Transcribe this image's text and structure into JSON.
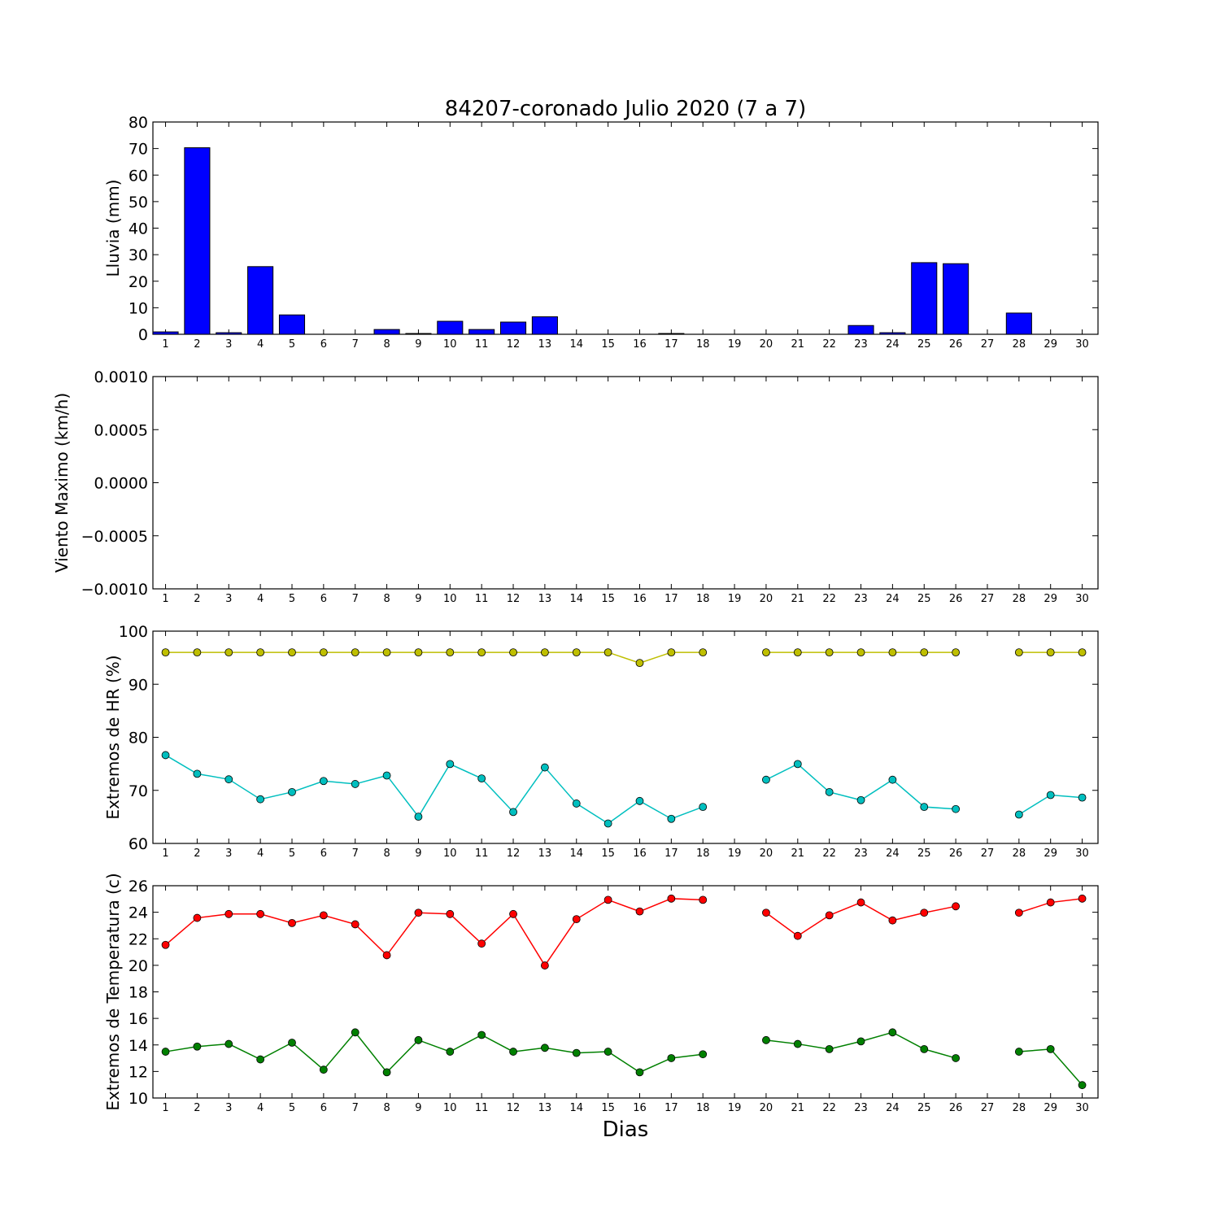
{
  "title": "84207-coronado Julio 2020  (7 a 7)",
  "xlabel": "Dias",
  "colors": {
    "rain": "#0000ff",
    "hr_max": "#bfbf00",
    "hr_min": "#00bfbf",
    "temp_max": "#ff0000",
    "temp_min": "#008000"
  },
  "chart_data": [
    {
      "type": "bar",
      "ylabel": "Lluvia (mm)",
      "ylim": [
        0,
        80
      ],
      "yticks": [
        "0",
        "10",
        "20",
        "30",
        "40",
        "50",
        "60",
        "70",
        "80"
      ],
      "xlim": [
        0.6,
        30.5
      ],
      "categories": [
        1,
        2,
        3,
        4,
        5,
        6,
        7,
        8,
        9,
        10,
        11,
        12,
        13,
        14,
        15,
        16,
        17,
        18,
        19,
        20,
        21,
        22,
        23,
        24,
        25,
        26,
        27,
        28,
        29,
        30
      ],
      "xticks": [
        "1",
        "2",
        "3",
        "4",
        "5",
        "6",
        "7",
        "8",
        "9",
        "10",
        "11",
        "12",
        "13",
        "14",
        "15",
        "16",
        "17",
        "18",
        "19",
        "20",
        "21",
        "22",
        "23",
        "24",
        "25",
        "26",
        "27",
        "28",
        "29",
        "30"
      ],
      "series": [
        {
          "values": [
            0.9,
            70.3,
            0.6,
            25.5,
            7.3,
            0,
            0,
            1.8,
            0.3,
            4.9,
            1.8,
            4.6,
            6.6,
            0,
            0,
            0,
            0.3,
            0,
            0,
            0,
            0,
            0,
            3.3,
            0.6,
            27.0,
            26.6,
            0,
            8.0,
            0,
            0
          ]
        }
      ]
    },
    {
      "type": "line",
      "ylabel": "Viento Maximo (km/h)",
      "ylim": [
        -0.001,
        0.001
      ],
      "yticks": [
        "−0.0010",
        "−0.0005",
        "0.0000",
        "0.0005",
        "0.0010"
      ],
      "xlim": [
        0.6,
        30.5
      ],
      "xticks": [
        "1",
        "2",
        "3",
        "4",
        "5",
        "6",
        "7",
        "8",
        "9",
        "10",
        "11",
        "12",
        "13",
        "14",
        "15",
        "16",
        "17",
        "18",
        "19",
        "20",
        "21",
        "22",
        "23",
        "24",
        "25",
        "26",
        "27",
        "28",
        "29",
        "30"
      ],
      "series": []
    },
    {
      "type": "line",
      "ylabel": "Extremos de HR (%)",
      "ylim": [
        55,
        105
      ],
      "yticks": [
        "60",
        "70",
        "80",
        "90",
        "100"
      ],
      "xlim": [
        0.6,
        30.5
      ],
      "x": [
        1,
        2,
        3,
        4,
        5,
        6,
        7,
        8,
        9,
        10,
        11,
        12,
        13,
        14,
        15,
        16,
        17,
        18,
        19,
        20,
        21,
        22,
        23,
        24,
        25,
        26,
        27,
        28,
        29,
        30
      ],
      "xticks": [
        "1",
        "2",
        "3",
        "4",
        "5",
        "6",
        "7",
        "8",
        "9",
        "10",
        "11",
        "12",
        "13",
        "14",
        "15",
        "16",
        "17",
        "18",
        "19",
        "20",
        "21",
        "22",
        "23",
        "24",
        "25",
        "26",
        "27",
        "28",
        "29",
        "30"
      ],
      "series": [
        {
          "color_key": "hr_max",
          "values": [
            100,
            100,
            100,
            100,
            100,
            100,
            100,
            100,
            100,
            100,
            100,
            100,
            100,
            100,
            100,
            97.5,
            100,
            100,
            null,
            100,
            100,
            100,
            100,
            100,
            100,
            100,
            null,
            100,
            100,
            100
          ]
        },
        {
          "color_key": "hr_min",
          "values": [
            75.8,
            71.4,
            70.1,
            65.4,
            67.1,
            69.7,
            69.0,
            71.0,
            61.3,
            73.7,
            70.3,
            62.4,
            72.9,
            64.4,
            59.7,
            65.0,
            60.8,
            63.6,
            null,
            70.0,
            73.7,
            67.1,
            65.2,
            70.0,
            63.6,
            63.1,
            null,
            61.8,
            66.4,
            65.8
          ]
        }
      ]
    },
    {
      "type": "line",
      "ylabel": "Extremos de Temperatura (c)",
      "ylim": [
        9.5,
        26
      ],
      "yticks": [
        "10",
        "12",
        "14",
        "16",
        "18",
        "20",
        "22",
        "24",
        "26"
      ],
      "xlim": [
        0.6,
        30.5
      ],
      "x": [
        1,
        2,
        3,
        4,
        5,
        6,
        7,
        8,
        9,
        10,
        11,
        12,
        13,
        14,
        15,
        16,
        17,
        18,
        19,
        20,
        21,
        22,
        23,
        24,
        25,
        26,
        27,
        28,
        29,
        30
      ],
      "xticks": [
        "1",
        "2",
        "3",
        "4",
        "5",
        "6",
        "7",
        "8",
        "9",
        "10",
        "11",
        "12",
        "13",
        "14",
        "15",
        "16",
        "17",
        "18",
        "19",
        "20",
        "21",
        "22",
        "23",
        "24",
        "25",
        "26",
        "27",
        "28",
        "29",
        "30"
      ],
      "series": [
        {
          "color_key": "temp_max",
          "values": [
            21.4,
            23.5,
            23.8,
            23.8,
            23.1,
            23.7,
            23.0,
            20.6,
            23.9,
            23.8,
            21.5,
            23.8,
            19.8,
            23.4,
            24.9,
            24.0,
            25.0,
            24.9,
            null,
            23.9,
            22.1,
            23.7,
            24.7,
            23.3,
            23.9,
            24.4,
            null,
            23.9,
            24.7,
            25.0
          ]
        },
        {
          "color_key": "temp_min",
          "values": [
            13.1,
            13.5,
            13.7,
            12.5,
            13.8,
            11.7,
            14.6,
            11.5,
            14.0,
            13.1,
            14.4,
            13.1,
            13.4,
            13.0,
            13.1,
            11.5,
            12.6,
            12.9,
            null,
            14.0,
            13.7,
            13.3,
            13.9,
            14.6,
            13.3,
            12.6,
            null,
            13.1,
            13.3,
            10.5
          ]
        }
      ]
    }
  ]
}
